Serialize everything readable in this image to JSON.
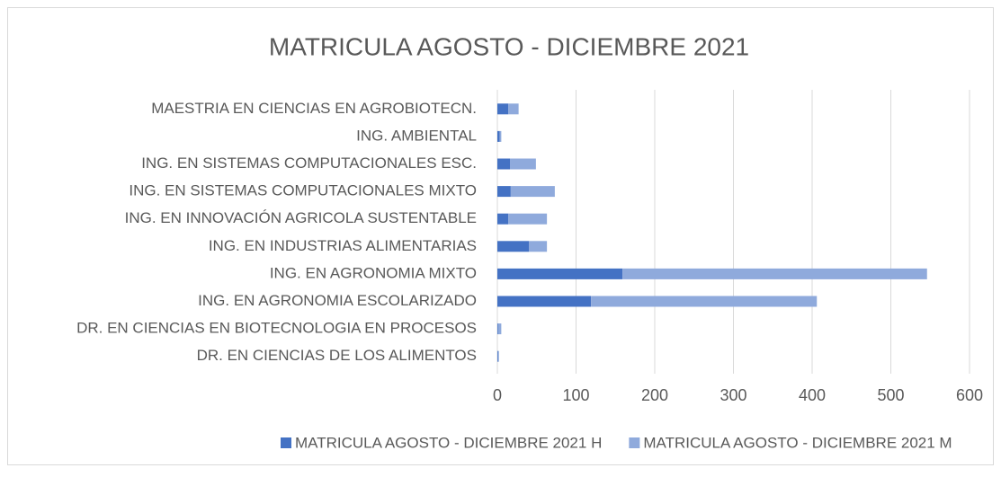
{
  "chart_data": {
    "type": "stacked-bar-horizontal",
    "title": "MATRICULA AGOSTO - DICIEMBRE 2021",
    "categories": [
      "MAESTRIA EN CIENCIAS EN AGROBIOTECN.",
      "ING. AMBIENTAL",
      "ING. EN SISTEMAS COMPUTACIONALES ESC.",
      "ING. EN SISTEMAS COMPUTACIONALES MIXTO",
      "ING. EN INNOVACIÓN AGRICOLA SUSTENTABLE",
      "ING. EN INDUSTRIAS ALIMENTARIAS",
      "ING. EN AGRONOMIA MIXTO",
      "ING. EN AGRONOMIA ESCOLARIZADO",
      "DR. EN CIENCIAS EN BIOTECNOLOGIA EN PROCESOS",
      "DR. EN CIENCIAS DE LOS ALIMENTOS"
    ],
    "series": [
      {
        "name": "MATRICULA AGOSTO - DICIEMBRE 2021 H",
        "color": "#4472c4",
        "values": [
          14,
          3,
          16,
          17,
          14,
          40,
          159,
          119,
          1,
          1
        ]
      },
      {
        "name": "MATRICULA AGOSTO - DICIEMBRE 2021 M",
        "color": "#8faadc",
        "values": [
          13,
          2,
          33,
          56,
          49,
          23,
          387,
          287,
          4,
          1
        ]
      }
    ],
    "xlim": [
      0,
      600
    ],
    "xticks": [
      0,
      100,
      200,
      300,
      400,
      500,
      600
    ],
    "grid": true,
    "legend": "bottom"
  }
}
